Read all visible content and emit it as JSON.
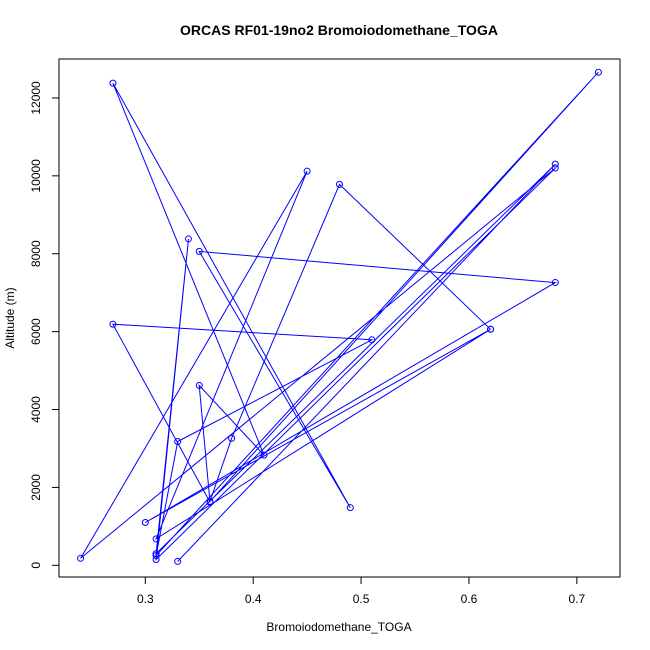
{
  "chart_data": {
    "type": "line",
    "title": "ORCAS RF01-19no2 Bromoiodomethane_TOGA",
    "xlabel": "Bromoiodomethane_TOGA",
    "ylabel": "Altitude (m)",
    "xlim": [
      0.22,
      0.74
    ],
    "ylim": [
      -300,
      13000
    ],
    "x_ticks": [
      0.3,
      0.4,
      0.5,
      0.6,
      0.7
    ],
    "y_ticks": [
      0,
      2000,
      4000,
      6000,
      8000,
      10000,
      12000
    ],
    "grid": false,
    "color": "#0000ff",
    "marker": "open-circle",
    "points": [
      [
        0.33,
        100
      ],
      [
        0.68,
        10300
      ],
      [
        0.31,
        300
      ],
      [
        0.34,
        8380
      ],
      [
        0.31,
        150
      ],
      [
        0.68,
        10200
      ],
      [
        0.24,
        180
      ],
      [
        0.45,
        10120
      ],
      [
        0.31,
        680
      ],
      [
        0.62,
        6060
      ],
      [
        0.3,
        1100
      ],
      [
        0.68,
        7260
      ],
      [
        0.35,
        8060
      ],
      [
        0.49,
        1480
      ],
      [
        0.27,
        12380
      ],
      [
        0.41,
        2830
      ],
      [
        0.35,
        4620
      ],
      [
        0.36,
        1620
      ],
      [
        0.27,
        6190
      ],
      [
        0.51,
        5790
      ],
      [
        0.33,
        3180
      ],
      [
        0.31,
        250
      ],
      [
        0.72,
        12660
      ],
      [
        0.36,
        1640
      ],
      [
        0.38,
        3260
      ],
      [
        0.48,
        9780
      ],
      [
        0.62,
        6060
      ]
    ]
  }
}
